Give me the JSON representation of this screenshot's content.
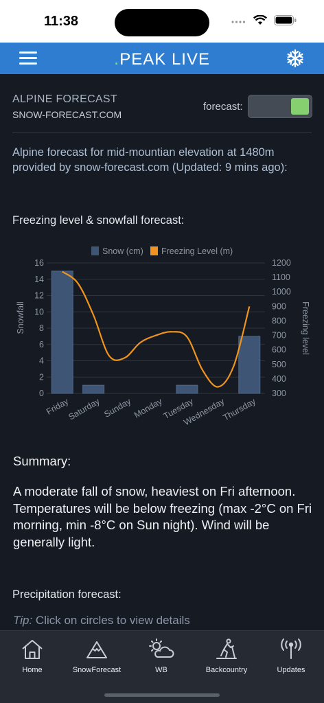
{
  "status_bar": {
    "time": "11:38"
  },
  "header": {
    "brand_dot": ".",
    "brand": "PEAK LIVE"
  },
  "section": {
    "title": "ALPINE FORECAST",
    "source": "SNOW-FORECAST.COM",
    "toggle_label": "forecast:",
    "toggle_on": true
  },
  "intro": "Alpine forecast for mid-mountian elevation at 1480m provided by snow-forecast.com (Updated: 9 mins ago):",
  "chart_heading": "Freezing level & snowfall forecast:",
  "chart_data": {
    "type": "bar",
    "categories": [
      "Friday",
      "Saturday",
      "Sunday",
      "Monday",
      "Tuesday",
      "Wednesday",
      "Thursday"
    ],
    "series": [
      {
        "name": "Snow (cm)",
        "type": "bar",
        "axis": "left",
        "color": "#3e5575",
        "values": [
          15,
          1,
          0,
          0,
          1,
          0,
          7
        ]
      },
      {
        "name": "Freezing Level (m)",
        "type": "line",
        "axis": "right",
        "color": "#f0941f",
        "x": [
          0,
          0.5,
          1,
          1.5,
          2,
          2.5,
          3,
          3.5,
          4,
          4.5,
          5,
          5.5,
          6
        ],
        "values": [
          1140,
          1060,
          840,
          560,
          545,
          650,
          700,
          725,
          690,
          460,
          345,
          490,
          900
        ]
      }
    ],
    "ylabel": "Snowfall",
    "y2label": "Freezing level",
    "ylim": [
      0,
      16
    ],
    "yticks": [
      0,
      2,
      4,
      6,
      8,
      10,
      12,
      14,
      16
    ],
    "y2lim": [
      300,
      1200
    ],
    "y2ticks": [
      300,
      400,
      500,
      600,
      700,
      800,
      900,
      1000,
      1100,
      1200
    ],
    "legend": "top",
    "grid": true
  },
  "summary": {
    "heading": "Summary:",
    "text": "A moderate fall of snow, heaviest on Fri afternoon. Temperatures will be below freezing (max -2°C on Fri morning, min -8°C on Sun night). Wind will be generally light."
  },
  "precip": {
    "heading": "Precipitation forecast:",
    "tip_label": "Tip:",
    "tip_text": " Click on circles to view details"
  },
  "tabs": [
    {
      "label": "Home",
      "icon": "home-icon"
    },
    {
      "label": "SnowForecast",
      "icon": "mountain-icon"
    },
    {
      "label": "WB",
      "icon": "weather-icon"
    },
    {
      "label": "Backcountry",
      "icon": "skier-icon"
    },
    {
      "label": "Updates",
      "icon": "broadcast-icon"
    }
  ],
  "colors": {
    "header": "#2f7dd1",
    "accent_green": "#86d06f",
    "snow_bar": "#3e5575",
    "freezing_line": "#f0941f",
    "background": "#161a22"
  }
}
